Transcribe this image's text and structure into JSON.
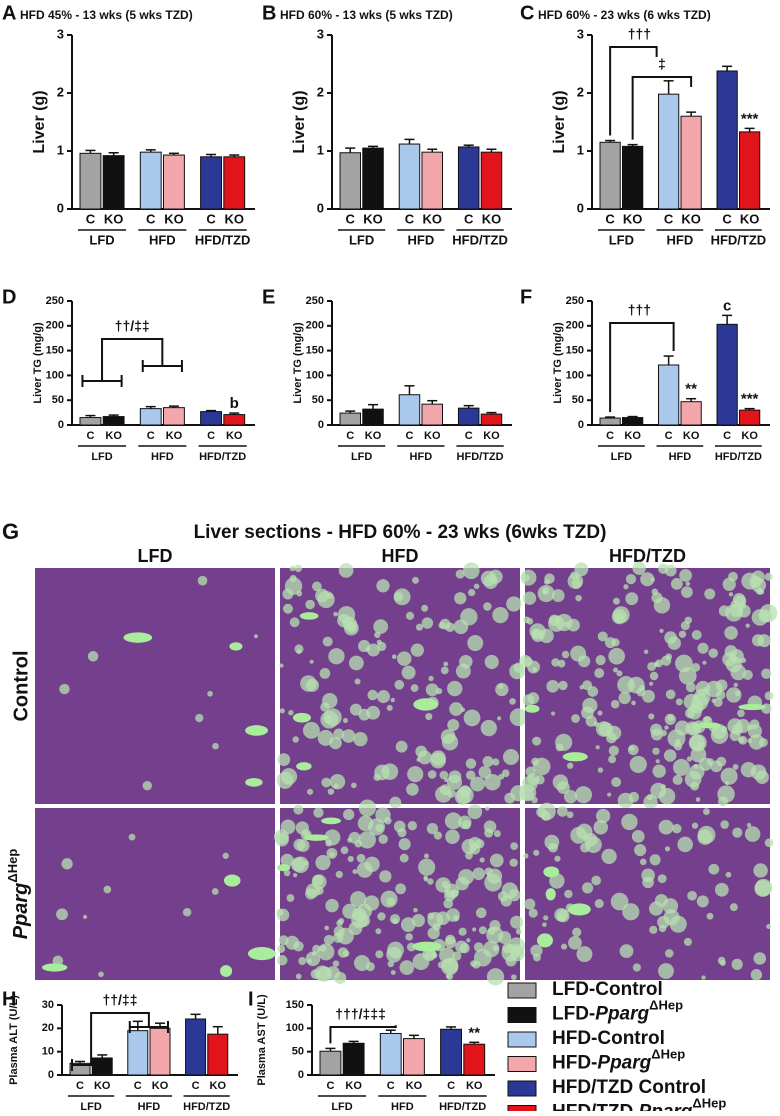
{
  "chart_data": [
    {
      "type": "bar",
      "label": "A",
      "title": "HFD 45%  - 13 wks (5 wks TZD)",
      "ylabel": "Liver (g)",
      "groups": [
        "LFD",
        "HFD",
        "HFD/TZD"
      ],
      "categories": [
        "C",
        "KO",
        "C",
        "KO",
        "C",
        "KO"
      ],
      "values": [
        0.96,
        0.92,
        0.98,
        0.93,
        0.9,
        0.9
      ],
      "errors": [
        0.05,
        0.05,
        0.04,
        0.03,
        0.04,
        0.03
      ],
      "ylim": [
        0,
        3
      ],
      "yticks": [
        0,
        1,
        2,
        3
      ]
    },
    {
      "type": "bar",
      "label": "B",
      "title": "HFD 60%  - 13 wks (5 wks TZD)",
      "ylabel": "Liver (g)",
      "groups": [
        "LFD",
        "HFD",
        "HFD/TZD"
      ],
      "categories": [
        "C",
        "KO",
        "C",
        "KO",
        "C",
        "KO"
      ],
      "values": [
        0.97,
        1.05,
        1.12,
        0.98,
        1.07,
        0.98
      ],
      "errors": [
        0.08,
        0.03,
        0.08,
        0.05,
        0.03,
        0.05
      ],
      "ylim": [
        0,
        3
      ],
      "yticks": [
        0,
        1,
        2,
        3
      ]
    },
    {
      "type": "bar",
      "label": "C",
      "title": "HFD 60% - 23 wks (6 wks TZD)",
      "ylabel": "Liver (g)",
      "groups": [
        "LFD",
        "HFD",
        "HFD/TZD"
      ],
      "categories": [
        "C",
        "KO",
        "C",
        "KO",
        "C",
        "KO"
      ],
      "values": [
        1.15,
        1.08,
        1.98,
        1.6,
        2.38,
        1.33
      ],
      "errors": [
        0.03,
        0.03,
        0.23,
        0.07,
        0.08,
        0.06
      ],
      "bar_labels": [
        null,
        null,
        null,
        null,
        null,
        "***"
      ],
      "annotations": [
        "†††",
        "‡"
      ],
      "ylim": [
        0,
        3
      ],
      "yticks": [
        0,
        1,
        2,
        3
      ]
    },
    {
      "type": "bar",
      "label": "D",
      "ylabel": "Liver TG (mg/g)",
      "groups": [
        "LFD",
        "HFD",
        "HFD/TZD"
      ],
      "categories": [
        "C",
        "KO",
        "C",
        "KO",
        "C",
        "KO"
      ],
      "values": [
        15,
        17,
        33,
        35,
        27,
        21
      ],
      "errors": [
        4,
        3,
        4,
        3,
        2,
        3
      ],
      "bar_labels": [
        null,
        null,
        null,
        null,
        null,
        "b"
      ],
      "annotations": [
        "††/‡‡"
      ],
      "ylim": [
        0,
        250
      ],
      "yticks": [
        0,
        50,
        100,
        150,
        200,
        250
      ]
    },
    {
      "type": "bar",
      "label": "E",
      "ylabel": "Liver TG (mg/g)",
      "groups": [
        "LFD",
        "HFD",
        "HFD/TZD"
      ],
      "categories": [
        "C",
        "KO",
        "C",
        "KO",
        "C",
        "KO"
      ],
      "values": [
        24,
        32,
        61,
        42,
        34,
        22
      ],
      "errors": [
        4,
        9,
        18,
        7,
        5,
        3
      ],
      "ylim": [
        0,
        250
      ],
      "yticks": [
        0,
        50,
        100,
        150,
        200,
        250
      ]
    },
    {
      "type": "bar",
      "label": "F",
      "ylabel": "Liver TG (mg/g)",
      "groups": [
        "LFD",
        "HFD",
        "HFD/TZD"
      ],
      "categories": [
        "C",
        "KO",
        "C",
        "KO",
        "C",
        "KO"
      ],
      "values": [
        14,
        15,
        121,
        47,
        203,
        30
      ],
      "errors": [
        2,
        2,
        18,
        6,
        18,
        3
      ],
      "bar_labels": [
        null,
        null,
        null,
        "**",
        "c",
        "***"
      ],
      "annotations": [
        "†††"
      ],
      "ylim": [
        0,
        250
      ],
      "yticks": [
        0,
        50,
        100,
        150,
        200,
        250
      ]
    },
    {
      "type": "bar",
      "label": "H",
      "ylabel": "Plasma  ALT (U/L)",
      "groups": [
        "LFD",
        "HFD",
        "HFD/TZD"
      ],
      "categories": [
        "C",
        "KO",
        "C",
        "KO",
        "C",
        "KO"
      ],
      "values": [
        5,
        7.3,
        19,
        20,
        24,
        17.5
      ],
      "errors": [
        0.8,
        1.3,
        4,
        2.2,
        2,
        3.2
      ],
      "annotations": [
        "††/‡‡"
      ],
      "ylim": [
        0,
        30
      ],
      "yticks": [
        0,
        10,
        20,
        30
      ]
    },
    {
      "type": "bar",
      "label": "I",
      "ylabel": "Plasma AST (U/L)",
      "groups": [
        "LFD",
        "HFD",
        "HFD/TZD"
      ],
      "categories": [
        "C",
        "KO",
        "C",
        "KO",
        "C",
        "KO"
      ],
      "values": [
        51,
        68,
        89,
        78,
        98,
        66
      ],
      "errors": [
        6,
        4,
        7,
        7,
        5,
        4
      ],
      "bar_labels": [
        null,
        null,
        null,
        null,
        null,
        "**"
      ],
      "annotations": [
        "†††/‡‡‡"
      ],
      "ylim": [
        0,
        150
      ],
      "yticks": [
        0,
        50,
        100,
        150
      ]
    }
  ],
  "histology": {
    "label": "G",
    "title": "Liver sections - HFD 60% - 23 wks (6wks TZD)",
    "columns": [
      "LFD",
      "HFD",
      "HFD/TZD"
    ],
    "rows": [
      {
        "name": "Control"
      },
      {
        "gene": "Pparg",
        "superscript": "ΔHep"
      }
    ]
  },
  "legend": [
    {
      "name": "LFD-Control",
      "color": "#a3a3a3"
    },
    {
      "name": "LFD-",
      "gene": "Pparg",
      "superscript": "ΔHep",
      "color": "#111111"
    },
    {
      "name": "HFD-Control",
      "color": "#a9c8ec"
    },
    {
      "name": "HFD-",
      "gene": "Pparg",
      "superscript": "ΔHep",
      "color": "#f4a7aa"
    },
    {
      "name": "HFD/TZD Control",
      "color": "#2b3896"
    },
    {
      "name": "HFD/TZD ",
      "gene": "Pparg",
      "superscript": "ΔHep",
      "color": "#e0141a"
    }
  ]
}
